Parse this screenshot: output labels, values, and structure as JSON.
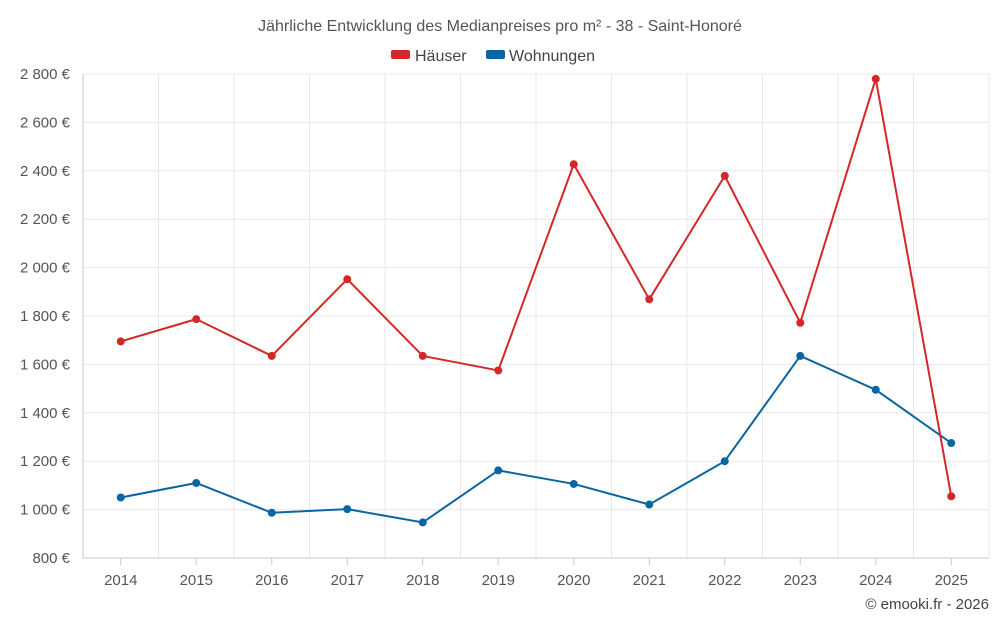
{
  "chart_data": {
    "type": "line",
    "title": "Jährliche Entwicklung des Medianpreises pro m² - 38 - Saint-Honoré",
    "categories": [
      "2014",
      "2015",
      "2016",
      "2017",
      "2018",
      "2019",
      "2020",
      "2021",
      "2022",
      "2023",
      "2024",
      "2025"
    ],
    "series": [
      {
        "name": "Häuser",
        "color": "#d62728",
        "values": [
          1695,
          1787,
          1635,
          1952,
          1635,
          1575,
          2427,
          1869,
          2379,
          1772,
          2780,
          1055
        ]
      },
      {
        "name": "Wohnungen",
        "color": "#0a66a0",
        "values": [
          1050,
          1110,
          987,
          1002,
          947,
          1162,
          1106,
          1021,
          1200,
          1635,
          1495,
          1275
        ]
      }
    ],
    "ylim": [
      800,
      2800
    ],
    "yticks": [
      800,
      1000,
      1200,
      1400,
      1600,
      1800,
      2000,
      2200,
      2400,
      2600,
      2800
    ],
    "ytick_labels": [
      "800 €",
      "1 000 €",
      "1 200 €",
      "1 400 €",
      "1 600 €",
      "1 800 €",
      "2 000 €",
      "2 200 €",
      "2 400 €",
      "2 600 €",
      "2 800 €"
    ],
    "xlabel": "",
    "ylabel": "",
    "grid": true,
    "legend_position": "top-center"
  },
  "credit": "© emooki.fr - 2026"
}
